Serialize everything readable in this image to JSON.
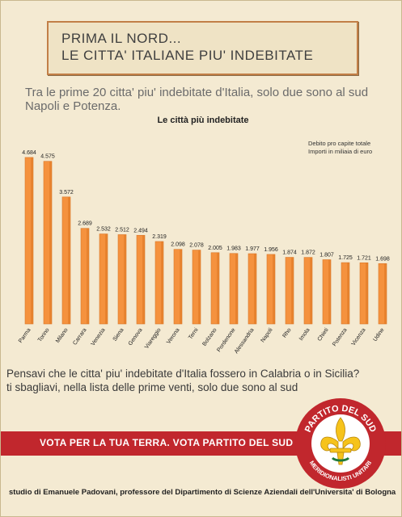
{
  "header": {
    "line1": "PRIMA IL NORD...",
    "line2": "LE CITTA' ITALIANE PIU' INDEBITATE"
  },
  "intro": {
    "line1": "Tra le prime 20 citta' piu' indebitate d'Italia, solo due sono al sud",
    "line2": "Napoli e Potenza."
  },
  "chart_data": {
    "type": "bar",
    "title": "Le città più indebitate",
    "legend_note": [
      "Debito pro capite totale",
      "Importi in miliaia di euro"
    ],
    "categories": [
      "Parma",
      "Torino",
      "Milano",
      "Carrara",
      "Venezia",
      "Siena",
      "Genova",
      "Viareggio",
      "Verona",
      "Terni",
      "Bolzano",
      "Pordenone",
      "Alessandria",
      "Napoli",
      "Rho",
      "Imola",
      "Chieti",
      "Potenza",
      "Vicenza",
      "Udine"
    ],
    "values": [
      4.684,
      4.575,
      3.572,
      2.689,
      2.532,
      2.512,
      2.494,
      2.319,
      2.098,
      2.078,
      2.005,
      1.983,
      1.977,
      1.956,
      1.874,
      1.872,
      1.807,
      1.725,
      1.721,
      1.698
    ],
    "value_labels": [
      "4.684",
      "4.575",
      "3.572",
      "2.689",
      "2.532",
      "2.512",
      "2.494",
      "2.319",
      "2.098",
      "2.078",
      "2.005",
      "1.983",
      "1.977",
      "1.956",
      "1.874",
      "1.872",
      "1.807",
      "1.725",
      "1.721",
      "1.698"
    ],
    "ylim": [
      0,
      5
    ],
    "grid": false,
    "bar_color": "#f5923e",
    "xlabel": "",
    "ylabel": ""
  },
  "question": {
    "line1": "Pensavi che le citta' piu' indebitate d'Italia fossero in Calabria o in Sicilia?",
    "line2": "ti sbagliavi, nella lista delle prime venti, solo due sono al sud"
  },
  "vote": {
    "text": "VOTA PER LA TUA TERRA. VOTA PARTITO DEL SUD"
  },
  "logo": {
    "top_text": "PARTITO DEL SUD",
    "bottom_text": "MERIDIONALISTI UNITARI",
    "icon": "fleur-de-lis-icon"
  },
  "footer": {
    "text": "studio di Emanuele Padovani, professore del Dipartimento di Scienze Aziendali dell'Universita' di Bologna"
  },
  "colors": {
    "background": "#f4ead2",
    "accent_red": "#c1272d",
    "bar_orange": "#f5923e",
    "header_border": "#c27f47",
    "logo_yellow": "#f6c31b"
  }
}
